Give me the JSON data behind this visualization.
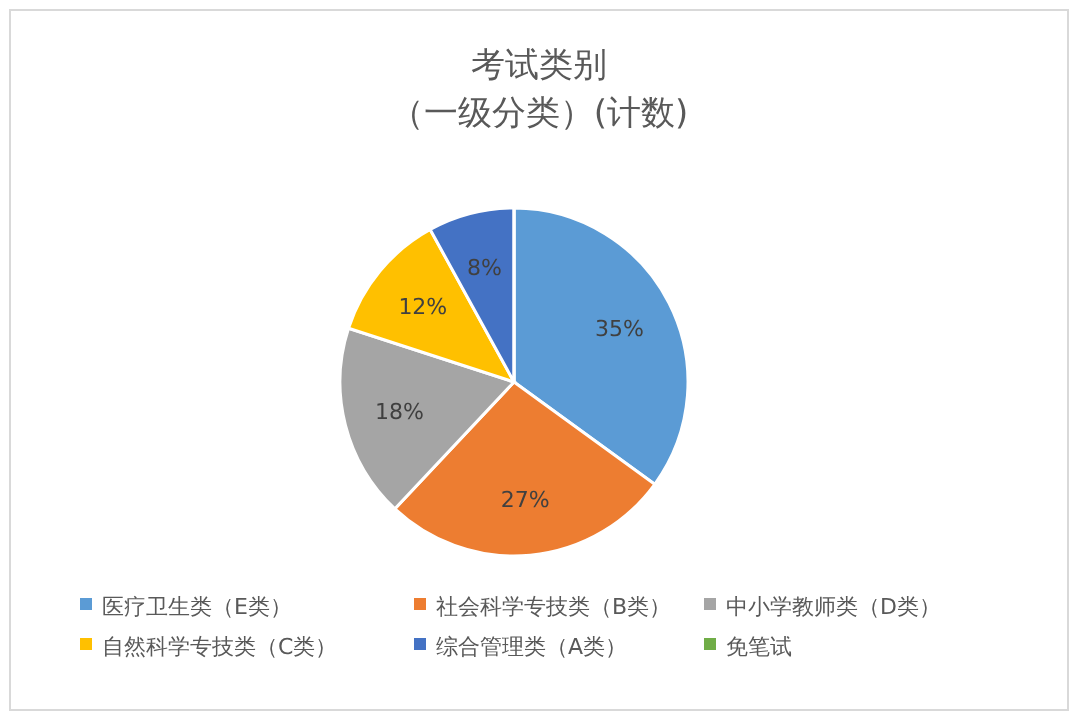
{
  "chart_data": {
    "type": "pie",
    "title": "考试类别",
    "subtitle": "（一级分类）(计数)",
    "categories": [
      "医疗卫生类（E类）",
      "社会科学专技类（B类）",
      "中小学教师类（D类）",
      "自然科学专技类（C类）",
      "综合管理类（A类）",
      "免笔试"
    ],
    "values": [
      35,
      27,
      18,
      12,
      8,
      0
    ],
    "value_labels": [
      "35%",
      "27%",
      "18%",
      "12%",
      "8%",
      null
    ],
    "colors": [
      "#5b9bd5",
      "#ed7d31",
      "#a5a5a5",
      "#ffc000",
      "#4472c4",
      "#70ad47"
    ],
    "legend": "bottom"
  }
}
